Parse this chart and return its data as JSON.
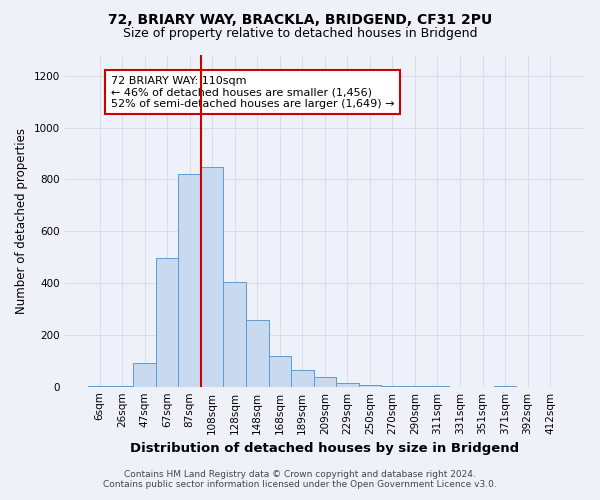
{
  "title": "72, BRIARY WAY, BRACKLA, BRIDGEND, CF31 2PU",
  "subtitle": "Size of property relative to detached houses in Bridgend",
  "xlabel": "Distribution of detached houses by size in Bridgend",
  "ylabel": "Number of detached properties",
  "bar_labels": [
    "6sqm",
    "26sqm",
    "47sqm",
    "67sqm",
    "87sqm",
    "108sqm",
    "128sqm",
    "148sqm",
    "168sqm",
    "189sqm",
    "209sqm",
    "229sqm",
    "250sqm",
    "270sqm",
    "290sqm",
    "311sqm",
    "331sqm",
    "351sqm",
    "371sqm",
    "392sqm",
    "412sqm"
  ],
  "bar_values": [
    2,
    3,
    92,
    495,
    822,
    848,
    405,
    258,
    118,
    65,
    37,
    15,
    8,
    4,
    4,
    1,
    0,
    0,
    2,
    0,
    0
  ],
  "bar_color": "#c9d9f0",
  "bar_edgecolor": "#5b9bd5",
  "vline_x": 5,
  "vline_color": "#cc0000",
  "annotation_text": "72 BRIARY WAY: 110sqm\n← 46% of detached houses are smaller (1,456)\n52% of semi-detached houses are larger (1,649) →",
  "annotation_box_color": "white",
  "annotation_box_edgecolor": "#cc0000",
  "ylim": [
    0,
    1280
  ],
  "yticks": [
    0,
    200,
    400,
    600,
    800,
    1000,
    1200
  ],
  "footer_line1": "Contains HM Land Registry data © Crown copyright and database right 2024.",
  "footer_line2": "Contains public sector information licensed under the Open Government Licence v3.0.",
  "background_color": "#eef2f8",
  "grid_color": "#d8dde8",
  "title_fontsize": 10,
  "subtitle_fontsize": 9,
  "axis_label_fontsize": 8.5,
  "tick_fontsize": 7.5,
  "annotation_fontsize": 8,
  "footer_fontsize": 6.5
}
